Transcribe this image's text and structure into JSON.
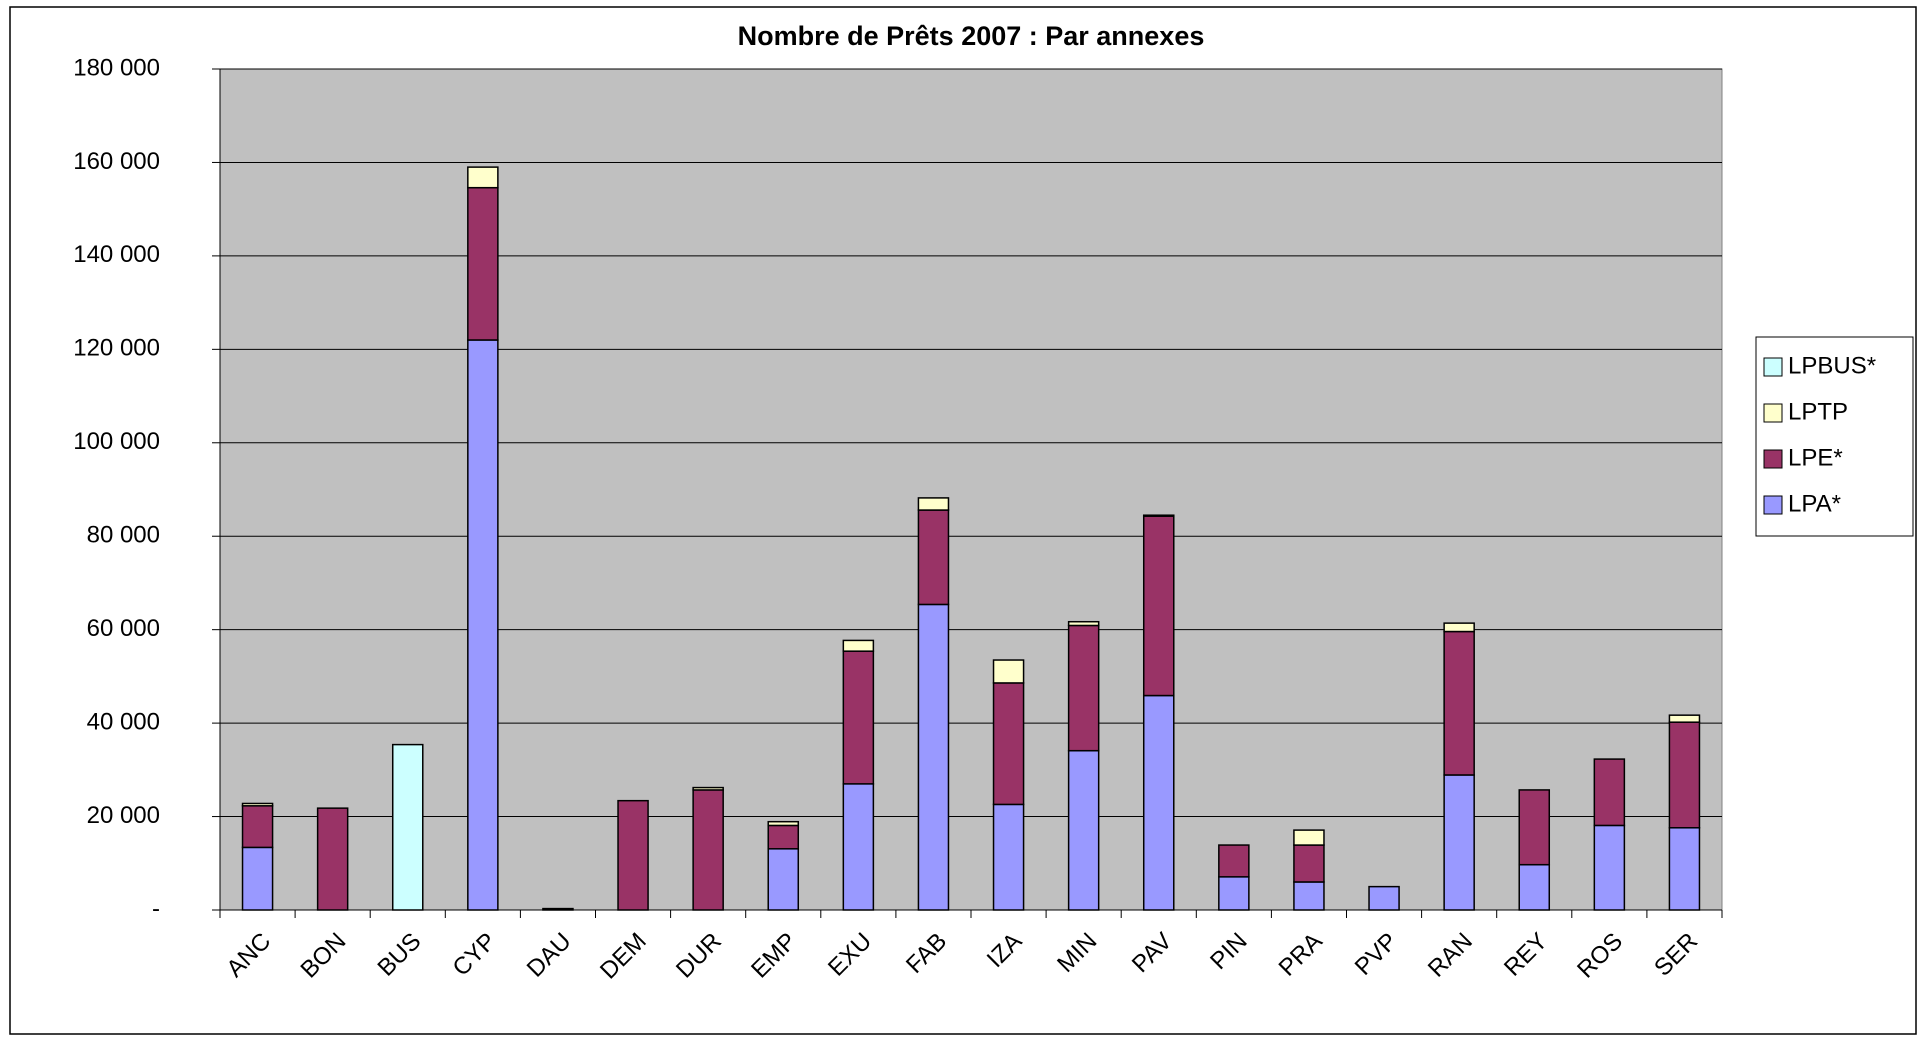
{
  "chart_data": {
    "type": "stacked_bar",
    "title": "Nombre de Prêts 2007 : Par annexes",
    "categories": [
      "ANC",
      "BON",
      "BUS",
      "CYP",
      "DAU",
      "DEM",
      "DUR",
      "EMP",
      "EXU",
      "FAB",
      "IZA",
      "MIN",
      "PAV",
      "PIN",
      "PRA",
      "PVP",
      "RAN",
      "REY",
      "ROS",
      "SER"
    ],
    "series": [
      {
        "name": "LPA*",
        "color": "#9999ff",
        "label_color": "#ff0000",
        "values": [
          13400,
          0,
          0,
          122000,
          0,
          0,
          0,
          13100,
          27000,
          65400,
          22600,
          34100,
          45900,
          7100,
          6000,
          5000,
          28900,
          9700,
          18100,
          17600
        ]
      },
      {
        "name": "LPE*",
        "color": "#993366",
        "label_color": "#0000ff",
        "values": [
          8900,
          21800,
          0,
          32600,
          300,
          23400,
          25700,
          5000,
          28400,
          20200,
          26000,
          26800,
          38400,
          6800,
          7900,
          0,
          30700,
          16000,
          14200,
          22600
        ]
      },
      {
        "name": "LPTP",
        "color": "#ffffcc",
        "label_color": "#000000",
        "values": [
          500,
          0,
          0,
          4400,
          0,
          0,
          500,
          800,
          2300,
          2600,
          4900,
          800,
          200,
          0,
          3200,
          0,
          1800,
          0,
          0,
          1500
        ]
      },
      {
        "name": "LPBUS*",
        "color": "#ccffff",
        "label_color": "#000000",
        "values": [
          0,
          0,
          35400,
          0,
          0,
          0,
          0,
          0,
          0,
          0,
          0,
          0,
          0,
          0,
          0,
          0,
          0,
          0,
          0,
          0
        ]
      }
    ],
    "ylim": [
      0,
      180000
    ],
    "yticks": [
      {
        "value": 0,
        "label": "-"
      },
      {
        "value": 20000,
        "label": "20 000"
      },
      {
        "value": 40000,
        "label": "40 000"
      },
      {
        "value": 60000,
        "label": "60 000"
      },
      {
        "value": 80000,
        "label": "80 000"
      },
      {
        "value": 100000,
        "label": "100 000"
      },
      {
        "value": 120000,
        "label": "120 000"
      },
      {
        "value": 140000,
        "label": "140 000"
      },
      {
        "value": 160000,
        "label": "160 000"
      },
      {
        "value": 180000,
        "label": "180 000"
      }
    ],
    "grid": true,
    "plot_background": "#c0c0c0",
    "legend": "right"
  }
}
